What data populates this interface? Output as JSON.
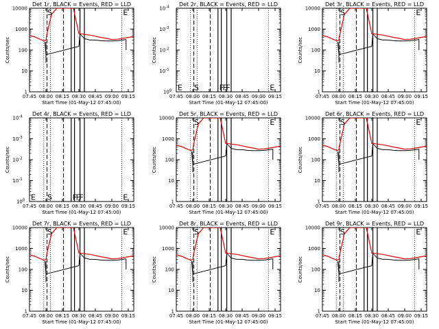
{
  "chart_data": {
    "type": "line",
    "title_suffix": "BLACK = Events, RED = LLD",
    "xlabel": "Start Time (01-May-12 07:45:00)",
    "ylabel": "Counts/sec",
    "xlim": [
      0,
      95
    ],
    "x_ticks": [
      {
        "value": 0,
        "label": "07:45"
      },
      {
        "value": 15,
        "label": "08:00"
      },
      {
        "value": 30,
        "label": "08:15"
      },
      {
        "value": 45,
        "label": "08:30"
      },
      {
        "value": 60,
        "label": "08:45"
      },
      {
        "value": 75,
        "label": "09:00"
      },
      {
        "value": 90,
        "label": "09:15"
      }
    ],
    "y_ticks_data": [
      {
        "value": 1,
        "label": "1"
      },
      {
        "value": 10,
        "label": "10"
      },
      {
        "value": 100,
        "label": "100"
      },
      {
        "value": 1000,
        "label": "1000"
      },
      {
        "value": 10000,
        "label": "10000"
      }
    ],
    "y_ticks_empty": [
      {
        "value": 1,
        "label": "10^0"
      },
      {
        "value": 10,
        "label": "10^-1"
      },
      {
        "value": 100,
        "label": "10^-2"
      },
      {
        "value": 1000,
        "label": "10^-3"
      },
      {
        "value": 10000,
        "label": "10^-4"
      }
    ],
    "ylim": [
      1,
      10000
    ],
    "x_data": [
      0,
      5,
      10,
      13,
      14,
      15,
      16,
      20,
      25,
      30,
      35,
      40,
      45,
      47,
      50,
      55,
      60,
      65,
      70,
      75,
      80,
      85,
      90,
      95
    ],
    "lld_values": [
      500,
      420,
      320,
      280,
      280,
      300,
      600,
      5000,
      10000,
      10000,
      10000,
      10000,
      600,
      600,
      560,
      520,
      460,
      400,
      360,
      320,
      330,
      360,
      400,
      450
    ],
    "event_x": [
      14,
      15,
      45,
      46,
      50,
      55,
      60,
      65,
      70,
      75,
      80,
      85,
      88
    ],
    "event_values": [
      250,
      60,
      150,
      600,
      350,
      300,
      300,
      280,
      270,
      270,
      280,
      300,
      320
    ],
    "dotted_lines": [
      13,
      19,
      84
    ],
    "dashed_lines": [
      16,
      31
    ],
    "solid_lines": [
      38,
      41,
      46,
      50
    ],
    "panels": [
      {
        "title": "Det 1r",
        "type": "data"
      },
      {
        "title": "Det 2r",
        "type": "empty"
      },
      {
        "title": "Det 3r",
        "type": "data"
      },
      {
        "title": "Det 4r",
        "type": "empty"
      },
      {
        "title": "Det 5r",
        "type": "data"
      },
      {
        "title": "Det 6r",
        "type": "data"
      },
      {
        "title": "Det 7r",
        "type": "data"
      },
      {
        "title": "Det 8r",
        "type": "data"
      },
      {
        "title": "Det 9r",
        "type": "data"
      }
    ],
    "markers_data": [
      {
        "letter": "S",
        "x": 15,
        "y": 10000
      },
      {
        "letter": "E",
        "x": 84,
        "y": 10000
      }
    ],
    "markers_empty": [
      {
        "letter": "E",
        "x": 0,
        "y": 1.5
      },
      {
        "letter": "S",
        "x": 15,
        "y": 1.5
      },
      {
        "letter": "F",
        "x": 38,
        "y": 1.5
      },
      {
        "letter": "F",
        "x": 41,
        "y": 1.5
      },
      {
        "letter": "F",
        "x": 44,
        "y": 1.5
      },
      {
        "letter": "E",
        "x": 84,
        "y": 1.5
      }
    ]
  }
}
